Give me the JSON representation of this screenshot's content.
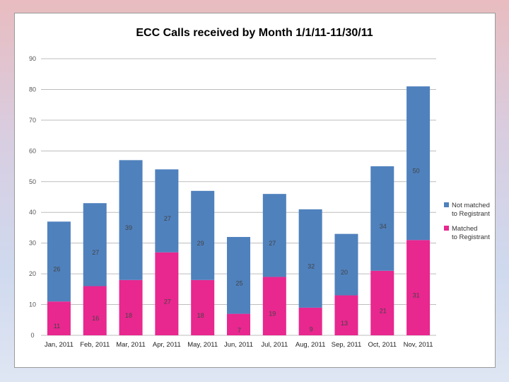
{
  "chart_data": {
    "type": "bar",
    "stacked": true,
    "title": "ECC Calls received by Month 1/1/11-11/30/11",
    "xlabel": "",
    "ylabel": "",
    "ylim": [
      0,
      90
    ],
    "yticks": [
      0,
      10,
      20,
      30,
      40,
      50,
      60,
      70,
      80,
      90
    ],
    "grid": true,
    "legend_position": "right",
    "categories": [
      "Jan, 2011",
      "Feb, 2011",
      "Mar, 2011",
      "Apr, 2011",
      "May, 2011",
      "Jun, 2011",
      "Jul, 2011",
      "Aug, 2011",
      "Sep, 2011",
      "Oct, 2011",
      "Nov, 2011"
    ],
    "series": [
      {
        "name": "Matched to Registrant",
        "color": "#e8278f",
        "values": [
          11,
          16,
          18,
          27,
          18,
          7,
          19,
          9,
          13,
          21,
          31
        ],
        "labels": [
          "11",
          "16",
          "18",
          "27",
          "18",
          "7",
          "19",
          "9",
          "13",
          "21",
          "31"
        ]
      },
      {
        "name": "Not matched to Registrant",
        "color": "#4f81bd",
        "values": [
          26,
          27,
          39,
          27,
          29,
          25,
          27,
          32,
          20,
          34,
          50
        ],
        "labels": [
          "26",
          "27",
          "39",
          "27",
          "29",
          "25",
          "27",
          "32",
          "20",
          "34",
          "50"
        ]
      }
    ]
  }
}
